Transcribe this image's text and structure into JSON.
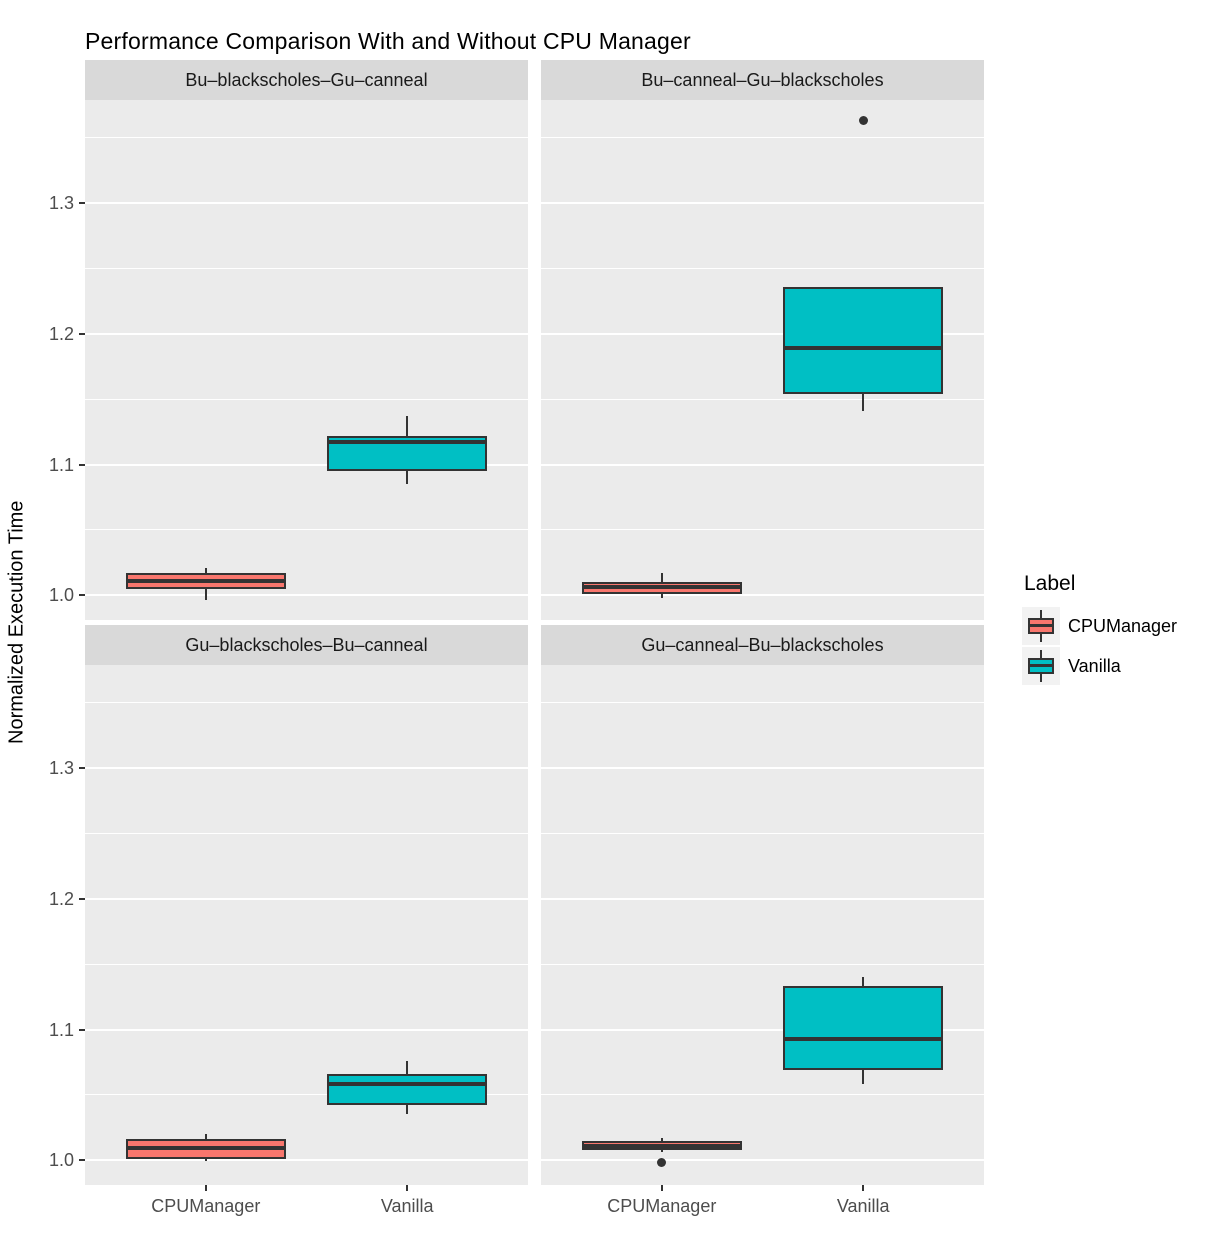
{
  "title": "Performance Comparison With and Without CPU Manager",
  "ylabel": "Normalized Execution Time",
  "legend": {
    "title": "Label",
    "items": [
      {
        "label": "CPUManager",
        "color": "#F8766D"
      },
      {
        "label": "Vanilla",
        "color": "#00BFC4"
      }
    ]
  },
  "theme": {
    "panel_background": "#EBEBEB",
    "strip_background": "#D9D9D9",
    "grid_color": "#FFFFFF",
    "box_border_color": "#333333",
    "tick_label_color": "#4D4D4D",
    "text_color": "#000000",
    "legend_key_background": "#F2F2F2"
  },
  "chart_data": {
    "type": "boxplot",
    "title": "Performance Comparison With and Without CPU Manager",
    "ylabel": "Normalized Execution Time",
    "xlabel": "",
    "categories": [
      "CPUManager",
      "Vanilla"
    ],
    "series_colors": {
      "CPUManager": "#F8766D",
      "Vanilla": "#00BFC4"
    },
    "ylim": [
      0.981,
      1.379
    ],
    "y_ticks": [
      1.0,
      1.1,
      1.2,
      1.3
    ],
    "y_tick_labels": [
      "1.0",
      "1.1",
      "1.2",
      "1.3"
    ],
    "y_minor_ticks": [
      1.05,
      1.15,
      1.25,
      1.35
    ],
    "grid": "on",
    "legend_position": "right",
    "facets": [
      {
        "label": "Bu–blackscholes–Gu–canneal",
        "boxes": [
          {
            "group": "CPUManager",
            "whisker_low": 0.996,
            "q1": 1.005,
            "median": 1.011,
            "q3": 1.017,
            "whisker_high": 1.021,
            "outliers": []
          },
          {
            "group": "Vanilla",
            "whisker_low": 1.085,
            "q1": 1.095,
            "median": 1.117,
            "q3": 1.122,
            "whisker_high": 1.137,
            "outliers": []
          }
        ]
      },
      {
        "label": "Bu–canneal–Gu–blackscholes",
        "boxes": [
          {
            "group": "CPUManager",
            "whisker_low": 0.998,
            "q1": 1.001,
            "median": 1.006,
            "q3": 1.01,
            "whisker_high": 1.017,
            "outliers": []
          },
          {
            "group": "Vanilla",
            "whisker_low": 1.141,
            "q1": 1.154,
            "median": 1.189,
            "q3": 1.236,
            "whisker_high": 1.236,
            "outliers": [
              1.363
            ]
          }
        ]
      },
      {
        "label": "Gu–blackscholes–Bu–canneal",
        "boxes": [
          {
            "group": "CPUManager",
            "whisker_low": 0.999,
            "q1": 1.001,
            "median": 1.009,
            "q3": 1.016,
            "whisker_high": 1.02,
            "outliers": []
          },
          {
            "group": "Vanilla",
            "whisker_low": 1.035,
            "q1": 1.042,
            "median": 1.058,
            "q3": 1.066,
            "whisker_high": 1.076,
            "outliers": []
          }
        ]
      },
      {
        "label": "Gu–canneal–Bu–blackscholes",
        "boxes": [
          {
            "group": "CPUManager",
            "whisker_low": 1.006,
            "q1": 1.008,
            "median": 1.011,
            "q3": 1.015,
            "whisker_high": 1.017,
            "outliers": [
              0.998
            ]
          },
          {
            "group": "Vanilla",
            "whisker_low": 1.058,
            "q1": 1.069,
            "median": 1.093,
            "q3": 1.133,
            "whisker_high": 1.14,
            "outliers": []
          }
        ]
      }
    ]
  }
}
